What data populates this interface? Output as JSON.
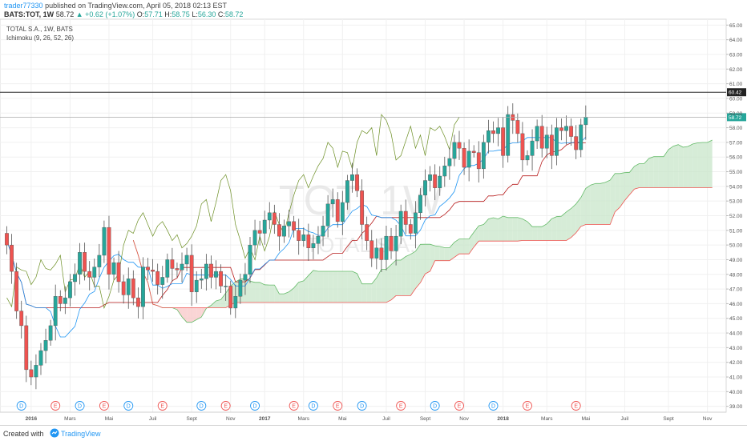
{
  "header": {
    "user": "trader77330",
    "published": "published on TradingView.com, April 05, 2018 02:13 EST",
    "symbol": "BATS:TOT, 1W",
    "last": "58.72",
    "change": "▲ +0.62 (+1.07%)",
    "o_label": "O:",
    "o_value": "57.71",
    "h_label": "H:",
    "h_value": "58.75",
    "l_label": "L:",
    "l_value": "56.30",
    "c_label": "C:",
    "c_value": "58.72"
  },
  "legend": {
    "title": "TOTAL S.A., 1W, BATS",
    "indicator": "Ichimoku (9, 26, 52, 26)"
  },
  "watermark": {
    "symbol": "TOT, 1W",
    "name": "TOTAL S.A."
  },
  "footer": {
    "created_with": "Created with",
    "brand": "TradingView"
  },
  "colors": {
    "up": "#26a69a",
    "down": "#ef5350",
    "kumo_bull": "#c8e6c9",
    "kumo_bear": "#f8c7c7",
    "tenkan": "#2196f3",
    "kijun": "#b71c1c",
    "chikou": "#6b8e23",
    "span_a": "#66bb6a",
    "span_b": "#ef5350",
    "axis_text": "#555555",
    "user_link": "#2196f3"
  },
  "chart_data": {
    "type": "candlestick",
    "title": "TOTAL S.A., 1W, BATS",
    "indicator": "Ichimoku (9, 26, 52, 26)",
    "ylim": [
      38.6,
      65.4
    ],
    "y_ticks": [
      "39.00",
      "40.00",
      "41.00",
      "42.00",
      "43.00",
      "44.00",
      "45.00",
      "46.00",
      "47.00",
      "48.00",
      "49.00",
      "50.00",
      "51.00",
      "52.00",
      "53.00",
      "54.00",
      "55.00",
      "56.00",
      "57.00",
      "58.00",
      "59.00",
      "60.00",
      "61.00",
      "62.00",
      "63.00",
      "64.00",
      "65.00"
    ],
    "x_ticks": [
      {
        "label": "2016",
        "bold": true,
        "bar": 5
      },
      {
        "label": "Mars",
        "bar": 13
      },
      {
        "label": "Mai",
        "bar": 21
      },
      {
        "label": "Juil",
        "bar": 30
      },
      {
        "label": "Sept",
        "bar": 38
      },
      {
        "label": "Nov",
        "bar": 46
      },
      {
        "label": "2017",
        "bold": true,
        "bar": 53
      },
      {
        "label": "Mars",
        "bar": 61
      },
      {
        "label": "Mai",
        "bar": 69
      },
      {
        "label": "Juil",
        "bar": 78
      },
      {
        "label": "Sept",
        "bar": 86
      },
      {
        "label": "Nov",
        "bar": 94
      },
      {
        "label": "2018",
        "bold": true,
        "bar": 102
      },
      {
        "label": "Mars",
        "bar": 111
      },
      {
        "label": "Mai",
        "bar": 119
      },
      {
        "label": "Juil",
        "bar": 127
      },
      {
        "label": "Sept",
        "bar": 136
      },
      {
        "label": "Nov",
        "bar": 144
      }
    ],
    "horizontal_lines": [
      {
        "value": 60.42,
        "label": "60.42",
        "color": "#222222",
        "label_bg": "#222222"
      },
      {
        "value": 58.72,
        "label": "58.72",
        "color": "#aaaaaa",
        "label_bg": "#26a69a"
      }
    ],
    "events": [
      {
        "type": "D",
        "bar": 3
      },
      {
        "type": "E",
        "bar": 10
      },
      {
        "type": "D",
        "bar": 15
      },
      {
        "type": "E",
        "bar": 20
      },
      {
        "type": "D",
        "bar": 25
      },
      {
        "type": "E",
        "bar": 32
      },
      {
        "type": "D",
        "bar": 40
      },
      {
        "type": "E",
        "bar": 45
      },
      {
        "type": "D",
        "bar": 51
      },
      {
        "type": "E",
        "bar": 59
      },
      {
        "type": "D",
        "bar": 63
      },
      {
        "type": "E",
        "bar": 68
      },
      {
        "type": "D",
        "bar": 73
      },
      {
        "type": "E",
        "bar": 81
      },
      {
        "type": "D",
        "bar": 88
      },
      {
        "type": "E",
        "bar": 93
      },
      {
        "type": "D",
        "bar": 100
      },
      {
        "type": "E",
        "bar": 107
      },
      {
        "type": "E",
        "bar": 117
      }
    ],
    "closes": [
      50,
      48.2,
      45.5,
      44.5,
      41.5,
      41,
      41.8,
      42.8,
      43.5,
      44.5,
      46.5,
      46,
      46.4,
      47.5,
      48,
      49.5,
      48.2,
      47.8,
      48.5,
      49.3,
      51.2,
      48,
      48.8,
      47.5,
      46.6,
      47.7,
      46.4,
      45.8,
      48.5,
      48.3,
      48.2,
      47.3,
      47.8,
      49,
      48.4,
      48.3,
      48.7,
      49.3,
      46.8,
      47.6,
      47.7,
      48.7,
      47.8,
      48.2,
      47.2,
      47.2,
      45.7,
      46.5,
      47.6,
      48,
      50,
      51,
      50.8,
      51.7,
      52.2,
      51.4,
      50.6,
      51.3,
      51.6,
      51,
      50.3,
      50.7,
      49.8,
      50.1,
      50.6,
      51.3,
      52.8,
      53.1,
      51.6,
      52.9,
      54.4,
      54.8,
      53.7,
      51.4,
      50.3,
      49.1,
      49.8,
      49,
      50.6,
      49.6,
      50.6,
      52.3,
      51.4,
      50.8,
      52.2,
      53.4,
      54.4,
      54.8,
      53.9,
      54.7,
      55.4,
      55.9,
      57,
      56.6,
      55.3,
      56.4,
      56.3,
      55.2,
      57,
      57.8,
      57.6,
      58,
      56.1,
      58.9,
      58.5,
      57.6,
      55.8,
      56.1,
      57.1,
      58.1,
      56.6,
      57.5,
      56.1,
      58,
      57.8,
      58.1,
      57.4,
      56.5,
      58.2,
      58.72
    ],
    "ohlc_first_open": 50.8,
    "ichimoku": {
      "span_a_note": "Senkou Span A, Senkou Span B, Kijun, Tenkan, Chikou computed from closes with periods 9, 26, 52, displacement 26"
    }
  }
}
